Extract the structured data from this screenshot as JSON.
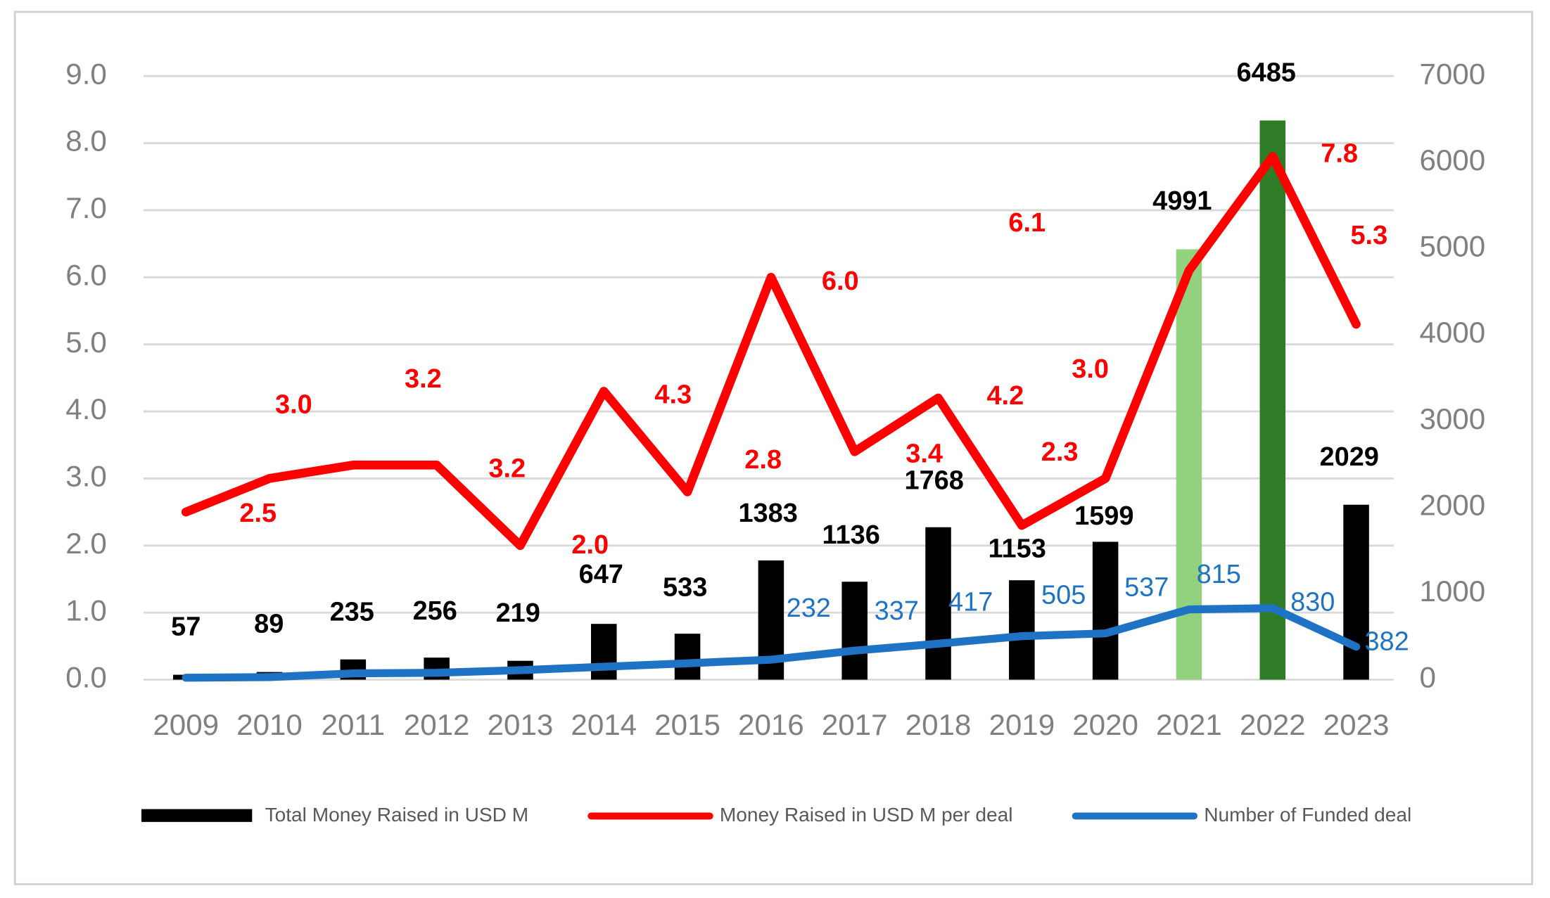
{
  "chart_data": {
    "type": "bar_line",
    "categories": [
      "2009",
      "2010",
      "2011",
      "2012",
      "2013",
      "2014",
      "2015",
      "2016",
      "2017",
      "2018",
      "2019",
      "2020",
      "2021",
      "2022",
      "2023"
    ],
    "series": [
      {
        "name": "Total Money Raised in USD M",
        "type": "bar",
        "axis": "y2",
        "color": "#000000",
        "colors": [
          "#000000",
          "#000000",
          "#000000",
          "#000000",
          "#000000",
          "#000000",
          "#000000",
          "#000000",
          "#000000",
          "#000000",
          "#000000",
          "#000000",
          "#92d17d",
          "#2e7d26",
          "#000000"
        ],
        "values": [
          57,
          89,
          235,
          256,
          219,
          647,
          533,
          1383,
          1136,
          1768,
          1153,
          1599,
          4991,
          6485,
          2029
        ]
      },
      {
        "name": "Money Raised in USD M per deal",
        "type": "line",
        "axis": "y",
        "color": "#ff0000",
        "values": [
          2.5,
          3.0,
          3.2,
          3.2,
          2.0,
          4.3,
          2.8,
          6.0,
          3.4,
          4.2,
          2.3,
          3.0,
          6.1,
          7.8,
          5.3
        ],
        "value_labels": [
          "2.5",
          "3.0",
          "3.2",
          "3.2",
          "2.0",
          "4.3",
          "2.8",
          "6.0",
          "3.4",
          "4.2",
          "2.3",
          "3.0",
          "6.1",
          "7.8",
          "5.3"
        ]
      },
      {
        "name": "Number of Funded deal",
        "type": "line",
        "axis": "y2",
        "color": "#1f73c4",
        "values": [
          23,
          30,
          73,
          80,
          110,
          150,
          190,
          232,
          337,
          417,
          505,
          537,
          815,
          830,
          382
        ],
        "value_labels": [
          null,
          null,
          null,
          null,
          null,
          null,
          null,
          "232",
          "337",
          "417",
          "505",
          "537",
          "815",
          "830",
          "382"
        ]
      }
    ],
    "ylim": [
      0,
      9
    ],
    "yticks": [
      {
        "value": 0,
        "label": "0.0"
      },
      {
        "value": 1,
        "label": "1.0"
      },
      {
        "value": 2,
        "label": "2.0"
      },
      {
        "value": 3,
        "label": "3.0"
      },
      {
        "value": 4,
        "label": "4.0"
      },
      {
        "value": 5,
        "label": "5.0"
      },
      {
        "value": 6,
        "label": "6.0"
      },
      {
        "value": 7,
        "label": "7.0"
      },
      {
        "value": 8,
        "label": "8.0"
      },
      {
        "value": 9,
        "label": "9.0"
      }
    ],
    "y2lim": [
      0,
      7000
    ],
    "y2ticks": [
      0,
      1000,
      2000,
      3000,
      4000,
      5000,
      6000,
      7000
    ],
    "grid": true,
    "legend": "bottom"
  }
}
